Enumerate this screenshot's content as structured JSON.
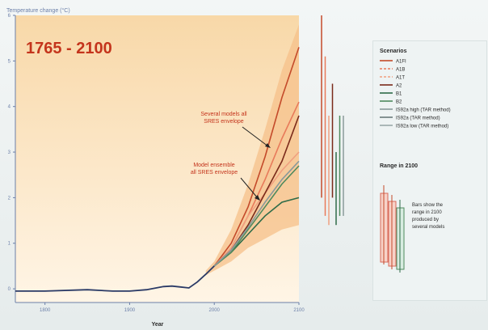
{
  "colors": {
    "plot_bg_top": "#f8d8a8",
    "plot_bg_bottom": "#fff5e6",
    "band": "#f6c08a",
    "hist": "#2a3a66",
    "axis": "#6b7fa8",
    "title": "#c4341c",
    "text": "#2a2a2a",
    "legend_bg": "#eef3f3"
  },
  "chart_data": {
    "type": "line",
    "title": "1765 - 2100",
    "ylabel": "Temperature change (°C)",
    "xlabel": "Year",
    "xlim": [
      1765,
      2100
    ],
    "ylim": [
      -0.3,
      6
    ],
    "x_ticks": [
      1800,
      1900,
      2000,
      2100
    ],
    "x_tick_labels": [
      "1800",
      "1900",
      "2000",
      "2100"
    ],
    "y_ticks": [
      0,
      1,
      2,
      3,
      4,
      5,
      6
    ],
    "y_tick_labels": [
      "0",
      "1",
      "2",
      "3",
      "4",
      "5",
      "6"
    ],
    "grid": false,
    "observed": {
      "x": [
        1765,
        1800,
        1850,
        1880,
        1900,
        1920,
        1940,
        1950,
        1960,
        1970,
        1980,
        1990,
        2000
      ],
      "y": [
        -0.05,
        -0.05,
        -0.02,
        -0.05,
        -0.05,
        -0.02,
        0.05,
        0.06,
        0.04,
        0.02,
        0.15,
        0.32,
        0.5
      ]
    },
    "envelope": {
      "x": [
        1990,
        2000,
        2020,
        2040,
        2060,
        2080,
        2100
      ],
      "lower": [
        0.3,
        0.4,
        0.6,
        0.9,
        1.1,
        1.3,
        1.4
      ],
      "upper": [
        0.4,
        0.6,
        1.3,
        2.3,
        3.5,
        4.8,
        5.8
      ]
    },
    "series": [
      {
        "name": "A1FI",
        "color": "#c44a2a",
        "x": [
          2000,
          2020,
          2040,
          2060,
          2080,
          2100
        ],
        "y": [
          0.5,
          1.0,
          1.8,
          2.9,
          4.2,
          5.3
        ]
      },
      {
        "name": "A1B",
        "color": "#e87a5a",
        "x": [
          2000,
          2020,
          2040,
          2060,
          2080,
          2100
        ],
        "y": [
          0.5,
          0.9,
          1.6,
          2.4,
          3.3,
          4.1
        ]
      },
      {
        "name": "A1T",
        "color": "#f0a080",
        "x": [
          2000,
          2020,
          2040,
          2060,
          2080,
          2100
        ],
        "y": [
          0.5,
          0.9,
          1.6,
          2.1,
          2.6,
          3.0
        ]
      },
      {
        "name": "A2",
        "color": "#7a2a1a",
        "x": [
          2000,
          2020,
          2040,
          2060,
          2080,
          2100
        ],
        "y": [
          0.5,
          0.85,
          1.4,
          2.1,
          2.8,
          3.8
        ]
      },
      {
        "name": "B1",
        "color": "#2e6b48",
        "x": [
          2000,
          2020,
          2040,
          2060,
          2080,
          2100
        ],
        "y": [
          0.5,
          0.8,
          1.2,
          1.6,
          1.9,
          2.0
        ]
      },
      {
        "name": "B2",
        "color": "#4f8a5e",
        "x": [
          2000,
          2020,
          2040,
          2060,
          2080,
          2100
        ],
        "y": [
          0.5,
          0.8,
          1.3,
          1.8,
          2.3,
          2.7
        ]
      },
      {
        "name": "IS92a (TAR method)",
        "color": "#8a9a9a",
        "x": [
          2000,
          2020,
          2040,
          2060,
          2080,
          2100
        ],
        "y": [
          0.5,
          0.85,
          1.35,
          1.9,
          2.4,
          2.8
        ]
      }
    ],
    "annotations": [
      {
        "text": "Several models all SRES envelope",
        "lines": [
          "Several models all",
          "SRES envelope"
        ]
      },
      {
        "text": "Model ensemble all SRES envelope",
        "lines": [
          "Model ensemble",
          "all SRES envelope"
        ]
      }
    ],
    "range_bars": [
      {
        "color": "#c44a2a",
        "low": 2.0,
        "high": 6.0
      },
      {
        "color": "#e87a5a",
        "low": 1.6,
        "high": 5.1
      },
      {
        "color": "#f0a080",
        "low": 1.4,
        "high": 3.8
      },
      {
        "color": "#7a2a1a",
        "low": 2.0,
        "high": 4.5
      },
      {
        "color": "#2e6b48",
        "low": 1.4,
        "high": 3.0
      },
      {
        "color": "#4f8a5e",
        "low": 1.6,
        "high": 3.8
      },
      {
        "color": "#8a9a9a",
        "low": 1.6,
        "high": 3.8
      }
    ]
  },
  "legend": {
    "title": "Scenarios",
    "items": [
      {
        "label": "A1FI",
        "color": "#c44a2a",
        "dash": false
      },
      {
        "label": "A1B",
        "color": "#e87a5a",
        "dash": true
      },
      {
        "label": "A1T",
        "color": "#f0a080",
        "dash": true
      },
      {
        "label": "A2",
        "color": "#7a2a1a",
        "dash": false
      },
      {
        "label": "B1",
        "color": "#2e6b48",
        "dash": false
      },
      {
        "label": "B2",
        "color": "#4f8a5e",
        "dash": false
      },
      {
        "label": "IS92a high (TAR method)",
        "color": "#8a9a9a",
        "dash": false
      },
      {
        "label": "IS92a (TAR method)",
        "color": "#6a7a7a",
        "dash": false
      },
      {
        "label": "IS92a low (TAR method)",
        "color": "#9aa8a8",
        "dash": false
      }
    ],
    "range_title": "Range in 2100",
    "range_note_lines": [
      "Bars show the",
      "range in 2100",
      "produced by",
      "several models"
    ]
  }
}
